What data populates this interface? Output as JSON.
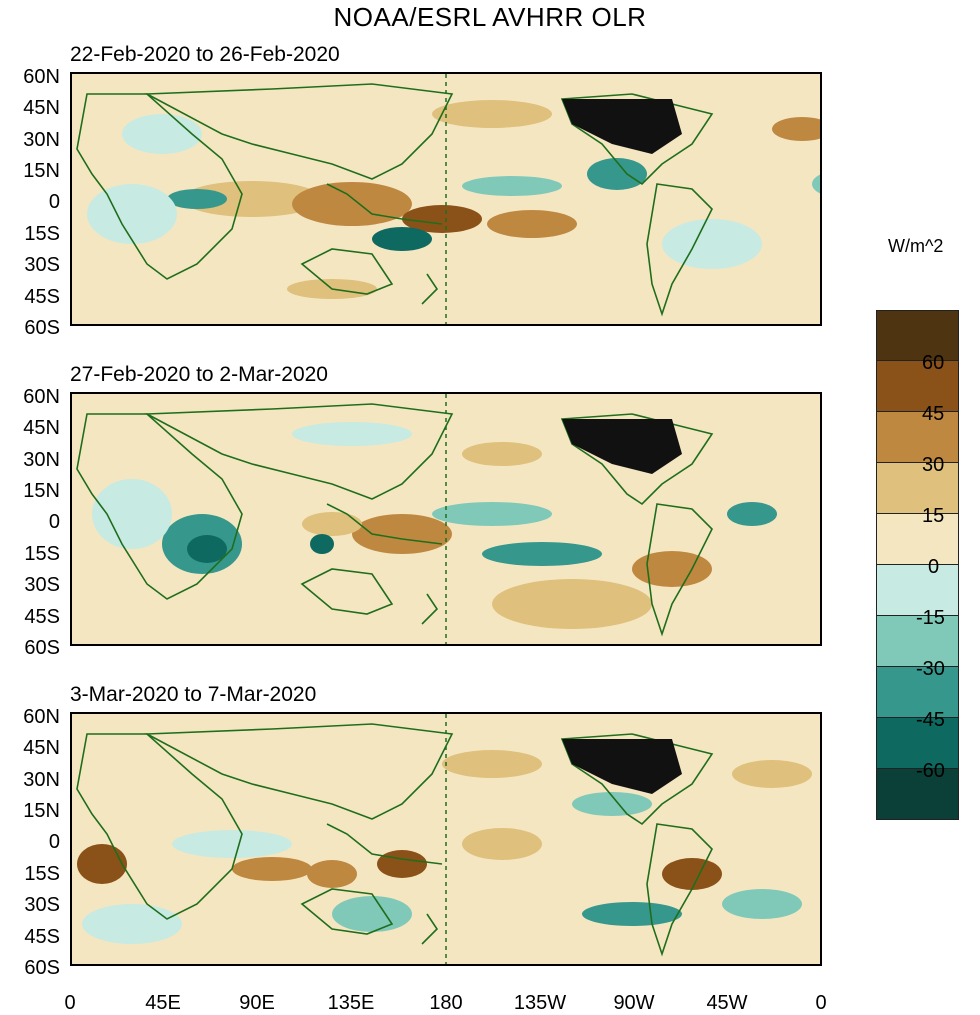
{
  "title": "NOAA/ESRL AVHRR OLR",
  "units": "W/m^2",
  "panels": [
    {
      "label": "22-Feb-2020 to 26-Feb-2020"
    },
    {
      "label": "27-Feb-2020 to 2-Mar-2020"
    },
    {
      "label": "3-Mar-2020 to 7-Mar-2020"
    }
  ],
  "lat_labels": [
    "60N",
    "45N",
    "30N",
    "15N",
    "0",
    "15S",
    "30S",
    "45S",
    "60S"
  ],
  "lon_labels": [
    "0",
    "45E",
    "90E",
    "135E",
    "180",
    "135W",
    "90W",
    "45W",
    "0"
  ],
  "colorbar": {
    "colors": [
      "#4e3410",
      "#8a5218",
      "#bf8840",
      "#dfc07c",
      "#f5e6c2",
      "#c7eae2",
      "#80c9b8",
      "#36978c",
      "#0e6a60",
      "#0a4038"
    ],
    "labels": [
      "60",
      "45",
      "30",
      "15",
      "0",
      "-15",
      "-30",
      "-45",
      "-60"
    ]
  },
  "colors": {
    "land_outline": "#1f6e1c",
    "dateline": "#1f6e1c"
  }
}
